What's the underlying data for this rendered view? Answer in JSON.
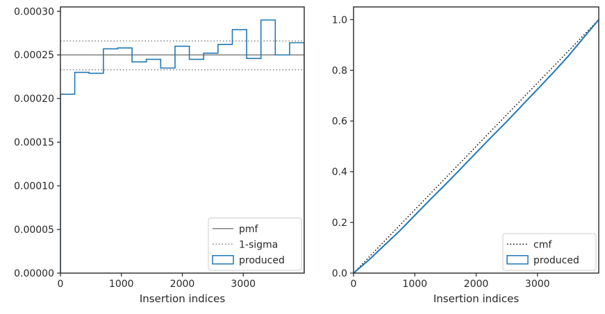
{
  "colors": {
    "produced": "#1f77b4",
    "pmf": "#808080",
    "sigma": "#808080",
    "cmf": "#000000",
    "axis": "#262626",
    "legend_border": "#cccccc"
  },
  "chart_data": [
    {
      "type": "step-histogram",
      "xlabel": "Insertion indices",
      "ylabel": "",
      "xlim": [
        0,
        4000
      ],
      "ylim": [
        0,
        0.000305
      ],
      "xticks": [
        0,
        1000,
        2000,
        3000
      ],
      "xtick_labels": [
        "0",
        "1000",
        "2000",
        "3000"
      ],
      "yticks": [
        0,
        5e-05,
        0.0001,
        0.00015,
        0.0002,
        0.00025,
        0.0003
      ],
      "ytick_labels": [
        "0.00000",
        "0.00005",
        "0.00010",
        "0.00015",
        "0.00020",
        "0.00025",
        "0.00030"
      ],
      "legend_location": "lower right",
      "legend": [
        {
          "label": "pmf",
          "style": "solid-line",
          "series": "pmf"
        },
        {
          "label": "1-sigma",
          "style": "dotted-line",
          "series": "sigma"
        },
        {
          "label": "produced",
          "style": "box",
          "series": "produced"
        }
      ],
      "pmf": 0.00025,
      "sigma_band": [
        0.000233,
        0.000266
      ],
      "bin_edges": [
        0,
        235,
        470,
        705,
        940,
        1175,
        1410,
        1645,
        1880,
        2115,
        2350,
        2585,
        2820,
        3055,
        3290,
        3525,
        3760,
        4000
      ],
      "produced": [
        0.000205,
        0.00023,
        0.000229,
        0.000257,
        0.000258,
        0.000242,
        0.000245,
        0.000235,
        0.00026,
        0.000245,
        0.000252,
        0.000262,
        0.000279,
        0.000246,
        0.00029,
        0.00025,
        0.000264
      ]
    },
    {
      "type": "line",
      "xlabel": "Insertion indices",
      "ylabel": "",
      "xlim": [
        0,
        4000
      ],
      "ylim": [
        0,
        1.05
      ],
      "xticks": [
        0,
        1000,
        2000,
        3000
      ],
      "xtick_labels": [
        "0",
        "1000",
        "2000",
        "3000"
      ],
      "yticks": [
        0,
        0.2,
        0.4,
        0.6,
        0.8,
        1.0
      ],
      "ytick_labels": [
        "0.0",
        "0.2",
        "0.4",
        "0.6",
        "0.8",
        "1.0"
      ],
      "legend_location": "lower right",
      "legend": [
        {
          "label": "cmf",
          "style": "dotted-line",
          "series": "cmf"
        },
        {
          "label": "produced",
          "style": "box",
          "series": "produced"
        }
      ],
      "cmf_x": [
        0,
        4000
      ],
      "cmf_y": [
        0,
        1.0
      ],
      "produced_x": [
        0,
        250,
        500,
        750,
        1000,
        1250,
        1500,
        1750,
        2000,
        2250,
        2500,
        2750,
        3000,
        3250,
        3500,
        3750,
        4000
      ],
      "produced_y": [
        0,
        0.052,
        0.109,
        0.166,
        0.228,
        0.29,
        0.35,
        0.412,
        0.475,
        0.537,
        0.598,
        0.662,
        0.725,
        0.789,
        0.855,
        0.928,
        1.0
      ]
    }
  ]
}
